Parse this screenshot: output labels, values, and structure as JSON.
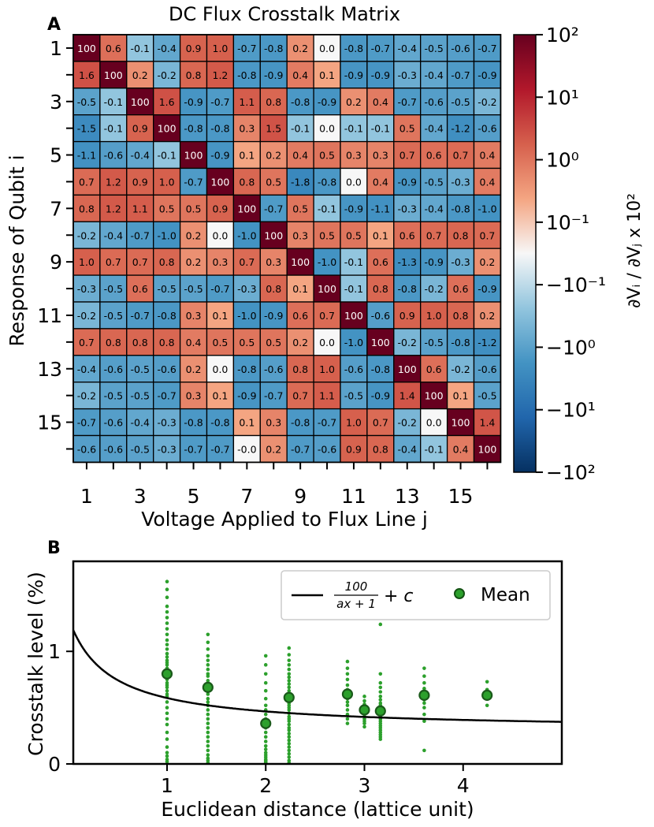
{
  "chart_data": [
    {
      "panel": "A",
      "type": "heatmap",
      "title": "DC Flux Crosstalk Matrix",
      "xlabel": "Voltage Applied to Flux Line j",
      "ylabel": "Response of Qubit i",
      "x_tick_labels": [
        "1",
        "3",
        "5",
        "7",
        "9",
        "11",
        "13",
        "15"
      ],
      "y_tick_labels": [
        "1",
        "3",
        "5",
        "7",
        "9",
        "11",
        "13",
        "15"
      ],
      "colorbar": {
        "label": "∂Vᵢ / ∂Vⱼ x 10²",
        "scale": "symlog",
        "colormap": "RdBu_r",
        "ticks": [
          "10²",
          "10¹",
          "10⁰",
          "10⁻¹",
          "−10⁻¹",
          "−10⁰",
          "−10¹",
          "−10²"
        ],
        "tick_values": [
          100,
          10,
          1,
          0.1,
          -0.1,
          -1,
          -10,
          -100
        ]
      },
      "matrix": [
        [
          "100",
          "0.6",
          "-0.1",
          "-0.4",
          "0.9",
          "1.0",
          "-0.7",
          "-0.8",
          "0.2",
          "0.0",
          "-0.8",
          "-0.7",
          "-0.4",
          "-0.5",
          "-0.6",
          "-0.7"
        ],
        [
          "1.6",
          "100",
          "0.2",
          "-0.2",
          "0.8",
          "1.2",
          "-0.8",
          "-0.9",
          "0.4",
          "0.1",
          "-0.9",
          "-0.9",
          "-0.3",
          "-0.4",
          "-0.7",
          "-0.9"
        ],
        [
          "-0.5",
          "-0.1",
          "100",
          "1.6",
          "-0.9",
          "-0.7",
          "1.1",
          "0.8",
          "-0.8",
          "-0.9",
          "0.2",
          "0.4",
          "-0.7",
          "-0.6",
          "-0.5",
          "-0.2"
        ],
        [
          "-1.5",
          "-0.1",
          "0.9",
          "100",
          "-0.8",
          "-0.8",
          "0.3",
          "1.5",
          "-0.1",
          "0.0",
          "-0.1",
          "-0.1",
          "0.5",
          "-0.4",
          "-1.2",
          "-0.6"
        ],
        [
          "-1.1",
          "-0.6",
          "-0.4",
          "-0.1",
          "100",
          "-0.9",
          "0.1",
          "0.2",
          "0.4",
          "0.5",
          "0.3",
          "0.3",
          "0.7",
          "0.6",
          "0.7",
          "0.4"
        ],
        [
          "0.7",
          "1.2",
          "0.9",
          "1.0",
          "-0.7",
          "100",
          "0.8",
          "0.5",
          "-1.8",
          "-0.8",
          "0.0",
          "0.4",
          "-0.9",
          "-0.5",
          "-0.3",
          "0.4"
        ],
        [
          "0.8",
          "1.2",
          "1.1",
          "0.5",
          "0.5",
          "0.9",
          "100",
          "-0.7",
          "0.5",
          "-0.1",
          "-0.9",
          "-1.1",
          "-0.3",
          "-0.4",
          "-0.8",
          "-1.0"
        ],
        [
          "-0.2",
          "-0.4",
          "-0.7",
          "-1.0",
          "0.2",
          "0.0",
          "-1.0",
          "100",
          "0.3",
          "0.5",
          "0.5",
          "0.1",
          "0.6",
          "0.7",
          "0.8",
          "0.7"
        ],
        [
          "1.0",
          "0.7",
          "0.7",
          "0.8",
          "0.2",
          "0.3",
          "0.7",
          "0.3",
          "100",
          "-1.0",
          "-0.1",
          "0.6",
          "-1.3",
          "-0.9",
          "-0.3",
          "0.2"
        ],
        [
          "-0.3",
          "-0.5",
          "0.6",
          "-0.5",
          "-0.5",
          "-0.7",
          "-0.3",
          "0.8",
          "0.1",
          "100",
          "-0.1",
          "0.8",
          "-0.8",
          "-0.2",
          "0.6",
          "-0.9"
        ],
        [
          "-0.2",
          "-0.5",
          "-0.7",
          "-0.8",
          "0.3",
          "0.1",
          "-1.0",
          "-0.9",
          "0.6",
          "0.7",
          "100",
          "-0.6",
          "0.9",
          "1.0",
          "0.8",
          "0.2"
        ],
        [
          "0.7",
          "0.8",
          "0.8",
          "0.8",
          "0.4",
          "0.5",
          "0.5",
          "0.5",
          "0.2",
          "0.0",
          "-1.0",
          "100",
          "-0.2",
          "-0.5",
          "-0.8",
          "-1.2"
        ],
        [
          "-0.4",
          "-0.6",
          "-0.5",
          "-0.6",
          "0.2",
          "0.0",
          "-0.8",
          "-0.6",
          "0.8",
          "1.0",
          "-0.6",
          "-0.8",
          "100",
          "0.6",
          "-0.2",
          "-0.6"
        ],
        [
          "-0.2",
          "-0.5",
          "-0.5",
          "-0.7",
          "0.3",
          "0.1",
          "-0.9",
          "-0.7",
          "0.7",
          "1.1",
          "-0.5",
          "-0.9",
          "1.4",
          "100",
          "0.1",
          "-0.5"
        ],
        [
          "-0.7",
          "-0.6",
          "-0.4",
          "-0.3",
          "-0.8",
          "-0.8",
          "0.1",
          "0.3",
          "-0.8",
          "-0.7",
          "1.0",
          "0.7",
          "-0.2",
          "0.0",
          "100",
          "1.4"
        ],
        [
          "-0.6",
          "-0.6",
          "-0.5",
          "-0.3",
          "-0.7",
          "-0.7",
          "-0.0",
          "0.2",
          "-0.7",
          "-0.6",
          "0.9",
          "0.8",
          "-0.4",
          "-0.1",
          "0.4",
          "100"
        ]
      ]
    },
    {
      "panel": "B",
      "type": "scatter",
      "xlabel": "Euclidean distance (lattice unit)",
      "ylabel": "Crosstalk level (%)",
      "xlim": [
        0.05,
        5.0
      ],
      "ylim": [
        0,
        1.8
      ],
      "x_ticks": [
        1,
        2,
        3,
        4
      ],
      "y_ticks": [
        0,
        1
      ],
      "fit_params": {
        "a": 2.5,
        "c": 0.3
      },
      "series": [
        {
          "name": "Mean",
          "color": "#006400",
          "edge_color": "#1a5a1a",
          "x": [
            1.0,
            1.414,
            2.0,
            2.236,
            2.828,
            3.0,
            3.162,
            3.606,
            4.243
          ],
          "y": [
            0.8,
            0.68,
            0.36,
            0.59,
            0.62,
            0.48,
            0.47,
            0.61,
            0.61
          ]
        },
        {
          "name": "",
          "color": "#2ca02c",
          "x": [
            1,
            1,
            1,
            1,
            1,
            1,
            1,
            1,
            1,
            1,
            1,
            1,
            1,
            1,
            1,
            1,
            1,
            1,
            1,
            1,
            1,
            1,
            1,
            1,
            1,
            1,
            1,
            1,
            1,
            1,
            1,
            1,
            1,
            1,
            1,
            1,
            1,
            1,
            1,
            1,
            1.414,
            1.414,
            1.414,
            1.414,
            1.414,
            1.414,
            1.414,
            1.414,
            1.414,
            1.414,
            1.414,
            1.414,
            1.414,
            1.414,
            1.414,
            1.414,
            1.414,
            1.414,
            1.414,
            1.414,
            1.414,
            1.414,
            1.414,
            1.414,
            1.414,
            1.414,
            1.414,
            1.414,
            1.414,
            1.414,
            2,
            2,
            2,
            2,
            2,
            2,
            2,
            2,
            2,
            2,
            2,
            2,
            2,
            2,
            2,
            2,
            2,
            2,
            2,
            2,
            2,
            2,
            2,
            2,
            2.236,
            2.236,
            2.236,
            2.236,
            2.236,
            2.236,
            2.236,
            2.236,
            2.236,
            2.236,
            2.236,
            2.236,
            2.236,
            2.236,
            2.236,
            2.236,
            2.236,
            2.236,
            2.236,
            2.236,
            2.236,
            2.236,
            2.236,
            2.236,
            2.236,
            2.236,
            2.236,
            2.236,
            2.236,
            2.236,
            2.236,
            2.236,
            2.236,
            2.236,
            2.236,
            2.236,
            2.828,
            2.828,
            2.828,
            2.828,
            2.828,
            2.828,
            2.828,
            2.828,
            2.828,
            2.828,
            2.828,
            2.828,
            2.828,
            2.828,
            3,
            3,
            3,
            3,
            3,
            3,
            3,
            3,
            3,
            3,
            3,
            3,
            3.162,
            3.162,
            3.162,
            3.162,
            3.162,
            3.162,
            3.162,
            3.162,
            3.162,
            3.162,
            3.162,
            3.162,
            3.162,
            3.162,
            3.162,
            3.162,
            3.162,
            3.162,
            3.162,
            3.162,
            3.162,
            3.162,
            3.162,
            3.162,
            3.606,
            3.606,
            3.606,
            3.606,
            3.606,
            3.606,
            3.606,
            3.606,
            3.606,
            3.606,
            3.606,
            3.606,
            4.243,
            4.243,
            4.243,
            4.243
          ],
          "y": [
            1.62,
            1.55,
            1.48,
            1.4,
            1.35,
            1.3,
            1.25,
            1.2,
            1.15,
            1.1,
            1.06,
            1.02,
            0.98,
            0.95,
            0.92,
            0.9,
            0.88,
            0.85,
            0.82,
            0.8,
            0.78,
            0.75,
            0.72,
            0.7,
            0.68,
            0.65,
            0.62,
            0.6,
            0.55,
            0.5,
            0.45,
            0.4,
            0.35,
            0.28,
            0.22,
            0.15,
            0.1,
            0.07,
            0.04,
            0.02,
            1.15,
            1.08,
            1.02,
            0.96,
            0.92,
            0.88,
            0.84,
            0.8,
            0.78,
            0.74,
            0.7,
            0.66,
            0.62,
            0.58,
            0.55,
            0.52,
            0.48,
            0.44,
            0.4,
            0.36,
            0.32,
            0.28,
            0.24,
            0.2,
            0.16,
            0.12,
            0.08,
            0.05,
            0.03,
            0.01,
            0.96,
            0.88,
            0.8,
            0.72,
            0.65,
            0.58,
            0.52,
            0.48,
            0.44,
            0.4,
            0.36,
            0.32,
            0.28,
            0.24,
            0.2,
            0.16,
            0.13,
            0.1,
            0.08,
            0.06,
            0.04,
            0.03,
            0.02,
            0.01,
            1.03,
            0.97,
            0.92,
            0.88,
            0.84,
            0.8,
            0.77,
            0.74,
            0.71,
            0.68,
            0.65,
            0.62,
            0.6,
            0.58,
            0.56,
            0.54,
            0.52,
            0.5,
            0.48,
            0.45,
            0.42,
            0.4,
            0.38,
            0.35,
            0.32,
            0.3,
            0.27,
            0.24,
            0.21,
            0.18,
            0.15,
            0.12,
            0.09,
            0.06,
            0.03,
            0.01,
            0.91,
            0.85,
            0.8,
            0.75,
            0.7,
            0.66,
            0.62,
            0.58,
            0.55,
            0.52,
            0.48,
            0.44,
            0.4,
            0.36,
            0.6,
            0.56,
            0.53,
            0.5,
            0.48,
            0.46,
            0.44,
            0.42,
            0.4,
            0.38,
            0.36,
            0.33,
            1.24,
            0.8,
            0.72,
            0.68,
            0.64,
            0.6,
            0.57,
            0.54,
            0.52,
            0.5,
            0.48,
            0.46,
            0.44,
            0.42,
            0.4,
            0.38,
            0.36,
            0.34,
            0.32,
            0.3,
            0.28,
            0.26,
            0.24,
            0.22,
            0.85,
            0.78,
            0.72,
            0.67,
            0.63,
            0.6,
            0.57,
            0.54,
            0.5,
            0.44,
            0.38,
            0.12,
            0.73,
            0.66,
            0.58,
            0.52
          ]
        }
      ],
      "legend": {
        "position": "top-right",
        "entries": [
          "100/(ax+1) + c",
          "Mean"
        ]
      },
      "fit_legend": {
        "numerator": "100",
        "denominator": "ax + 1",
        "suffix": "+ c"
      }
    }
  ],
  "panels": {
    "a_letter": "A",
    "b_letter": "B"
  }
}
